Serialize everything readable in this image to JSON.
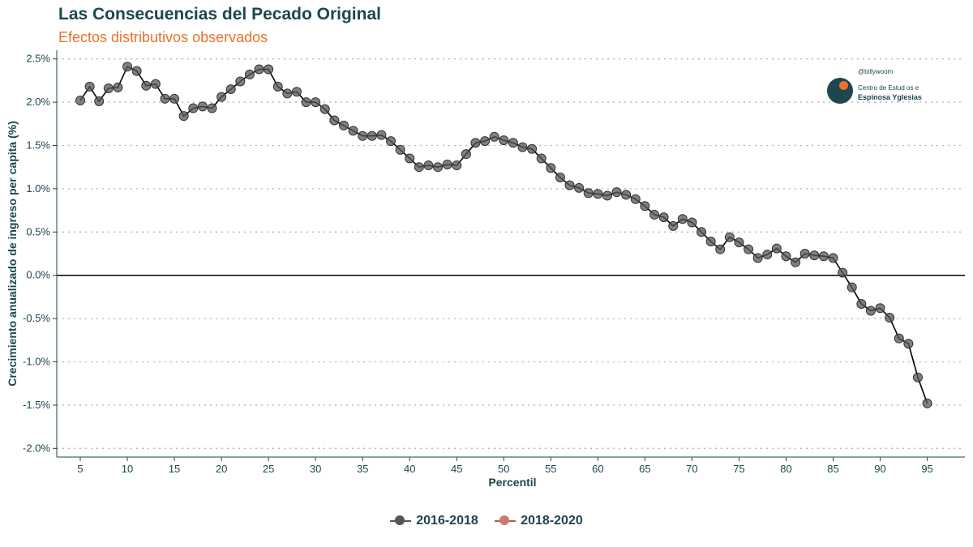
{
  "header": {
    "title": "Las Consecuencias del Pecado Original",
    "subtitle": "Efectos distributivos observados"
  },
  "logo": {
    "handle": "@billywoom",
    "line1": "Centro de Estud os e",
    "line2": "Espinosa Yglesias"
  },
  "colors": {
    "series_1": "#555555",
    "series_2": "#c0504d",
    "line": "#000000",
    "title": "#1d4650",
    "subtitle": "#e8732a"
  },
  "chart_data": {
    "type": "line",
    "xlabel": "Percentil",
    "ylabel": "Crecimiento anualizado de ingreso per capita (%)",
    "x_ticks": [
      5,
      10,
      15,
      20,
      25,
      30,
      35,
      40,
      45,
      50,
      55,
      60,
      65,
      70,
      75,
      80,
      85,
      90,
      95
    ],
    "y_ticks": [
      "2.5%",
      "2.0%",
      "1.5%",
      "1.0%",
      "0.5%",
      "0.0%",
      "-0.5%",
      "-1.0%",
      "-1.5%",
      "-2.0%"
    ],
    "ylim": [
      -2.1,
      2.6
    ],
    "xlim": [
      2.5,
      99
    ],
    "grid": "horizontal dotted",
    "legend_position": "bottom",
    "series": [
      {
        "name": "2016-2018",
        "x": [
          5,
          6,
          7,
          8,
          9,
          10,
          11,
          12,
          13,
          14,
          15,
          16,
          17,
          18,
          19,
          20,
          21,
          22,
          23,
          24,
          25,
          26,
          27,
          28,
          29,
          30,
          31,
          32,
          33,
          34,
          35,
          36,
          37,
          38,
          39,
          40,
          41,
          42,
          43,
          44,
          45,
          46,
          47,
          48,
          49,
          50,
          51,
          52,
          53,
          54,
          55,
          56,
          57,
          58,
          59,
          60,
          61,
          62,
          63,
          64,
          65,
          66,
          67,
          68,
          69,
          70,
          71,
          72,
          73,
          74,
          75,
          76,
          77,
          78,
          79,
          80,
          81,
          82,
          83,
          84,
          85,
          86,
          87,
          88,
          89,
          90,
          91,
          92,
          93,
          94,
          95
        ],
        "values": [
          2.02,
          2.18,
          2.01,
          2.16,
          2.17,
          2.41,
          2.36,
          2.19,
          2.21,
          2.04,
          2.04,
          1.84,
          1.93,
          1.95,
          1.93,
          2.06,
          2.15,
          2.24,
          2.32,
          2.38,
          2.38,
          2.18,
          2.1,
          2.12,
          2.0,
          2.0,
          1.92,
          1.79,
          1.73,
          1.67,
          1.61,
          1.61,
          1.62,
          1.55,
          1.45,
          1.35,
          1.25,
          1.27,
          1.25,
          1.28,
          1.27,
          1.4,
          1.53,
          1.55,
          1.6,
          1.56,
          1.53,
          1.48,
          1.46,
          1.35,
          1.24,
          1.13,
          1.04,
          1.01,
          0.95,
          0.94,
          0.92,
          0.96,
          0.93,
          0.88,
          0.8,
          0.7,
          0.67,
          0.57,
          0.65,
          0.61,
          0.5,
          0.39,
          0.3,
          0.44,
          0.38,
          0.3,
          0.2,
          0.24,
          0.31,
          0.22,
          0.15,
          0.25,
          0.23,
          0.22,
          0.2,
          0.03,
          -0.14,
          -0.33,
          -0.41,
          -0.38,
          -0.49,
          -0.73,
          -0.79,
          -1.18,
          -1.48
        ]
      },
      {
        "name": "2018-2020",
        "x": [],
        "values": []
      }
    ]
  }
}
